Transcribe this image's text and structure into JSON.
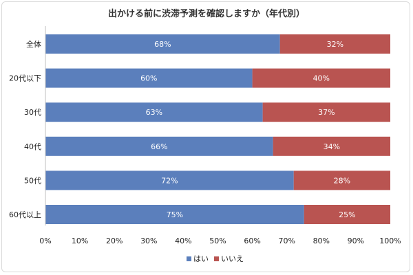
{
  "chart_data": {
    "type": "bar",
    "orientation": "horizontal",
    "stacked": true,
    "title": "出かける前に渋滞予測を確認しますか（年代別）",
    "categories": [
      "全体",
      "20代以下",
      "30代",
      "40代",
      "50代",
      "60代以上"
    ],
    "series": [
      {
        "name": "はい",
        "color": "#5b7fbc",
        "values": [
          68,
          60,
          63,
          66,
          72,
          75
        ],
        "labels": [
          "68%",
          "60%",
          "63%",
          "66%",
          "72%",
          "75%"
        ]
      },
      {
        "name": "いいえ",
        "color": "#b95451",
        "values": [
          32,
          40,
          37,
          34,
          28,
          25
        ],
        "labels": [
          "32%",
          "40%",
          "37%",
          "34%",
          "28%",
          "25%"
        ]
      }
    ],
    "xlim": [
      0,
      100
    ],
    "xticks": [
      "0%",
      "10%",
      "20%",
      "30%",
      "40%",
      "50%",
      "60%",
      "70%",
      "80%",
      "90%",
      "100%"
    ],
    "grid": false,
    "legend": "bottom"
  }
}
